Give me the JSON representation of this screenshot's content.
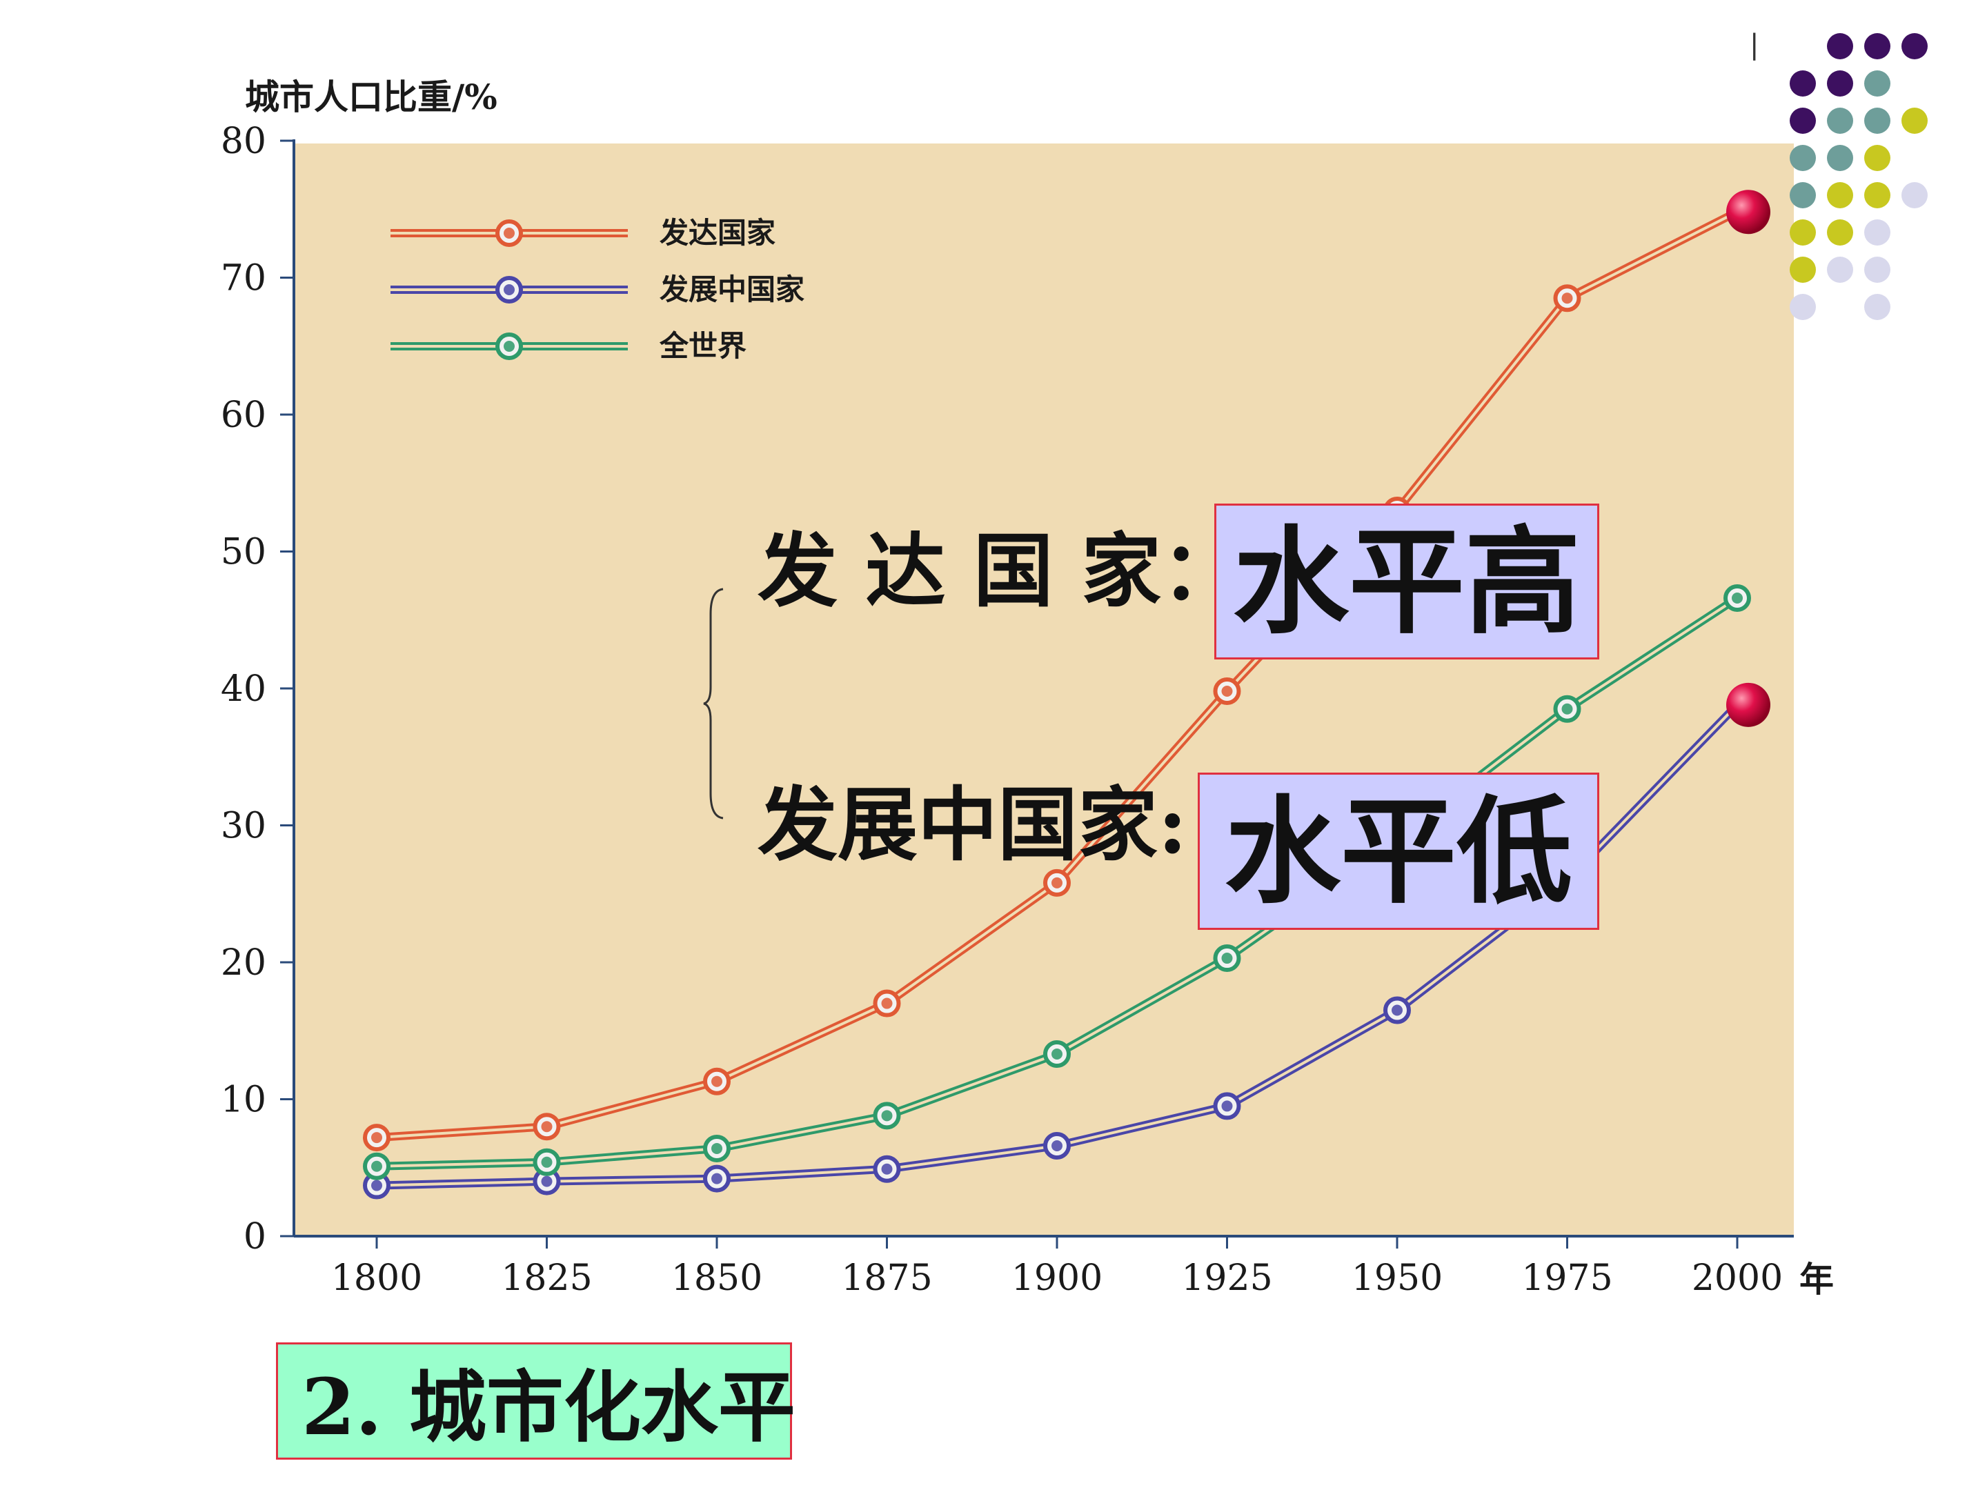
{
  "chart_data": {
    "type": "line",
    "ylabel": "城市人口比重/%",
    "xlabel": "年",
    "x": [
      1800,
      1825,
      1850,
      1875,
      1900,
      1925,
      1950,
      1975,
      2000
    ],
    "x_tick_labels": [
      "1800",
      "1825",
      "1850",
      "1875",
      "1900",
      "1925",
      "1950",
      "1975",
      "2000"
    ],
    "ylim": [
      0,
      80
    ],
    "y_ticks": [
      0,
      10,
      20,
      30,
      40,
      50,
      60,
      70,
      80
    ],
    "y_tick_labels": [
      "0",
      "10",
      "20",
      "30",
      "40",
      "50",
      "60",
      "70",
      "80"
    ],
    "grid": false,
    "legend_position": "top-left",
    "plot_background": "#f0dcb4",
    "series": [
      {
        "name": "发达国家",
        "color": "#e05a35",
        "values": [
          7.2,
          8.0,
          11.3,
          17.0,
          25.8,
          39.8,
          53.0,
          68.5,
          74.8
        ]
      },
      {
        "name": "发展中国家",
        "color": "#4a46a8",
        "values": [
          3.7,
          4.0,
          4.2,
          4.9,
          6.6,
          9.5,
          16.5,
          26.0,
          38.8
        ]
      },
      {
        "name": "全世界",
        "color": "#2e9a6a",
        "values": [
          5.1,
          5.4,
          6.4,
          8.8,
          13.3,
          20.3,
          29.0,
          38.5,
          46.6
        ]
      }
    ],
    "highlight_color": "#d0103a"
  },
  "annotations": {
    "developed_label": "发 达 国 家：",
    "developed_level": "水平高",
    "developing_label": "发展中国家:",
    "developing_level": "水平低",
    "box_fill": "#ccccff",
    "box_border": "#e03040"
  },
  "slide_title": {
    "text": "2. 城市化水平",
    "fill": "#99ffcc",
    "border": "#e03040"
  },
  "decoration": {
    "tick_mark": "|",
    "dot_colors": [
      "#3d1060",
      "#6e9e9a",
      "#c8c820",
      "#d8d8ec"
    ]
  }
}
